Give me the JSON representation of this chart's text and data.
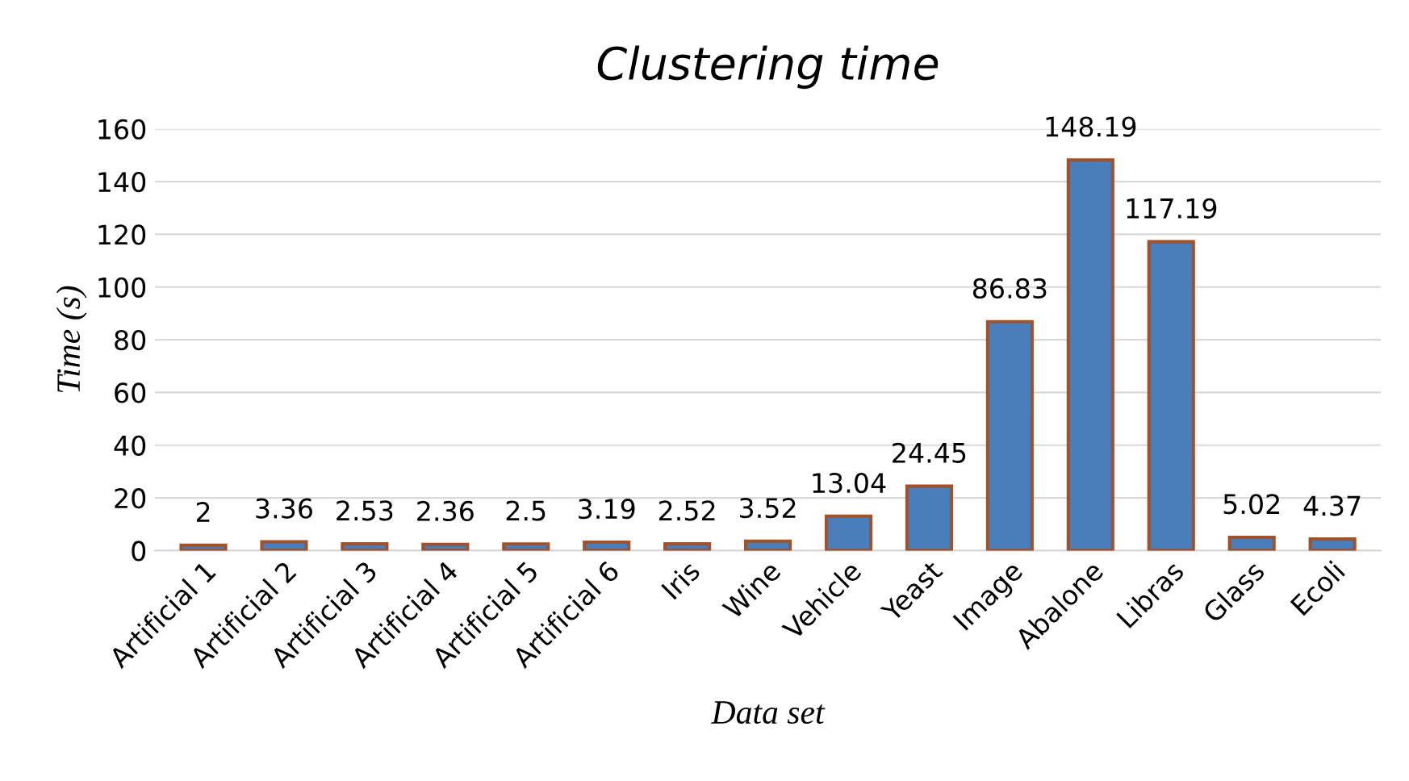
{
  "chart_data": {
    "type": "bar",
    "title": "Clustering time",
    "xlabel": "Data set",
    "ylabel": "Time (s)",
    "categories": [
      "Artificial 1",
      "Artificial 2",
      "Artificial 3",
      "Artificial 4",
      "Artificial 5",
      "Artificial 6",
      "Iris",
      "Wine",
      "Vehicle",
      "Yeast",
      "Image",
      "Abalone",
      "Libras",
      "Glass",
      "Ecoli"
    ],
    "values": [
      2,
      3.36,
      2.53,
      2.36,
      2.5,
      3.19,
      2.52,
      3.52,
      13.04,
      24.45,
      86.83,
      148.19,
      117.19,
      5.02,
      4.37
    ],
    "color": "#4a7ebb",
    "ylim": [
      0,
      160
    ],
    "yticks": [
      0,
      20,
      40,
      60,
      80,
      100,
      120,
      140,
      160
    ],
    "grid": "y",
    "data_labels": true,
    "legend": false
  }
}
